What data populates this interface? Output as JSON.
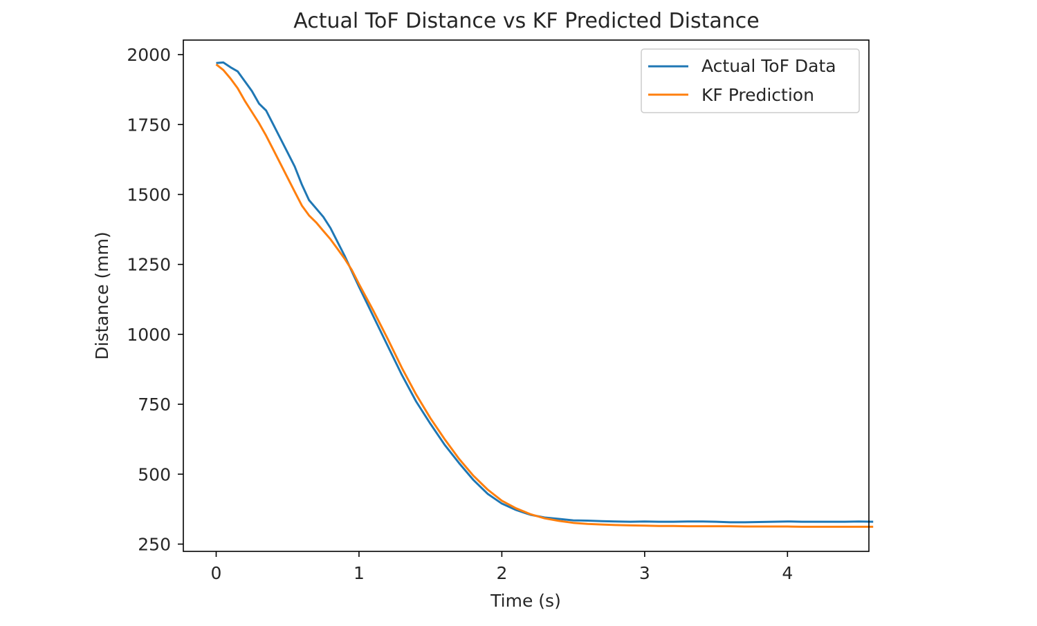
{
  "chart_data": {
    "type": "line",
    "title": "Actual ToF Distance vs KF Predicted Distance",
    "xlabel": "Time (s)",
    "ylabel": "Distance (mm)",
    "xlim": [
      -0.23,
      4.57
    ],
    "ylim": [
      224,
      2052
    ],
    "xticks": [
      0,
      1,
      2,
      3,
      4
    ],
    "yticks": [
      250,
      500,
      750,
      1000,
      1250,
      1500,
      1750,
      2000
    ],
    "grid": false,
    "legend_position": "top-right",
    "series": [
      {
        "name": "Actual ToF Data",
        "color": "#1f77b4",
        "x": [
          0,
          0.05,
          0.1,
          0.15,
          0.2,
          0.25,
          0.3,
          0.35,
          0.4,
          0.45,
          0.5,
          0.55,
          0.6,
          0.65,
          0.7,
          0.75,
          0.8,
          0.85,
          0.9,
          0.95,
          1.0,
          1.1,
          1.2,
          1.3,
          1.4,
          1.5,
          1.6,
          1.7,
          1.8,
          1.9,
          2.0,
          2.1,
          2.2,
          2.3,
          2.4,
          2.5,
          2.6,
          2.7,
          2.8,
          2.9,
          3.0,
          3.1,
          3.2,
          3.3,
          3.4,
          3.5,
          3.6,
          3.7,
          3.8,
          3.9,
          4.0,
          4.1,
          4.2,
          4.3,
          4.4,
          4.5,
          4.6
        ],
        "y": [
          1970,
          1972,
          1955,
          1940,
          1905,
          1870,
          1825,
          1800,
          1750,
          1700,
          1650,
          1600,
          1535,
          1480,
          1450,
          1420,
          1380,
          1330,
          1280,
          1225,
          1170,
          1065,
          960,
          855,
          760,
          680,
          605,
          540,
          480,
          430,
          395,
          372,
          355,
          345,
          340,
          335,
          334,
          332,
          331,
          330,
          331,
          330,
          330,
          331,
          331,
          330,
          328,
          328,
          329,
          330,
          331,
          330,
          330,
          330,
          330,
          331,
          330
        ]
      },
      {
        "name": "KF Prediction",
        "color": "#ff7f0e",
        "x": [
          0,
          0.05,
          0.1,
          0.15,
          0.2,
          0.25,
          0.3,
          0.35,
          0.4,
          0.45,
          0.5,
          0.55,
          0.6,
          0.65,
          0.7,
          0.75,
          0.8,
          0.85,
          0.9,
          0.95,
          1.0,
          1.1,
          1.2,
          1.3,
          1.4,
          1.5,
          1.6,
          1.7,
          1.8,
          1.9,
          2.0,
          2.1,
          2.2,
          2.3,
          2.4,
          2.5,
          2.6,
          2.7,
          2.8,
          2.9,
          3.0,
          3.1,
          3.2,
          3.3,
          3.4,
          3.5,
          3.6,
          3.7,
          3.8,
          3.9,
          4.0,
          4.1,
          4.2,
          4.3,
          4.4,
          4.5,
          4.6
        ],
        "y": [
          1965,
          1945,
          1915,
          1880,
          1835,
          1795,
          1755,
          1710,
          1660,
          1610,
          1560,
          1510,
          1460,
          1425,
          1400,
          1370,
          1340,
          1305,
          1270,
          1230,
          1180,
          1085,
          985,
          880,
          785,
          700,
          625,
          555,
          495,
          445,
          405,
          378,
          357,
          342,
          333,
          326,
          322,
          320,
          318,
          317,
          316,
          315,
          315,
          314,
          314,
          314,
          314,
          313,
          313,
          313,
          313,
          312,
          312,
          312,
          312,
          312,
          312
        ]
      }
    ]
  }
}
